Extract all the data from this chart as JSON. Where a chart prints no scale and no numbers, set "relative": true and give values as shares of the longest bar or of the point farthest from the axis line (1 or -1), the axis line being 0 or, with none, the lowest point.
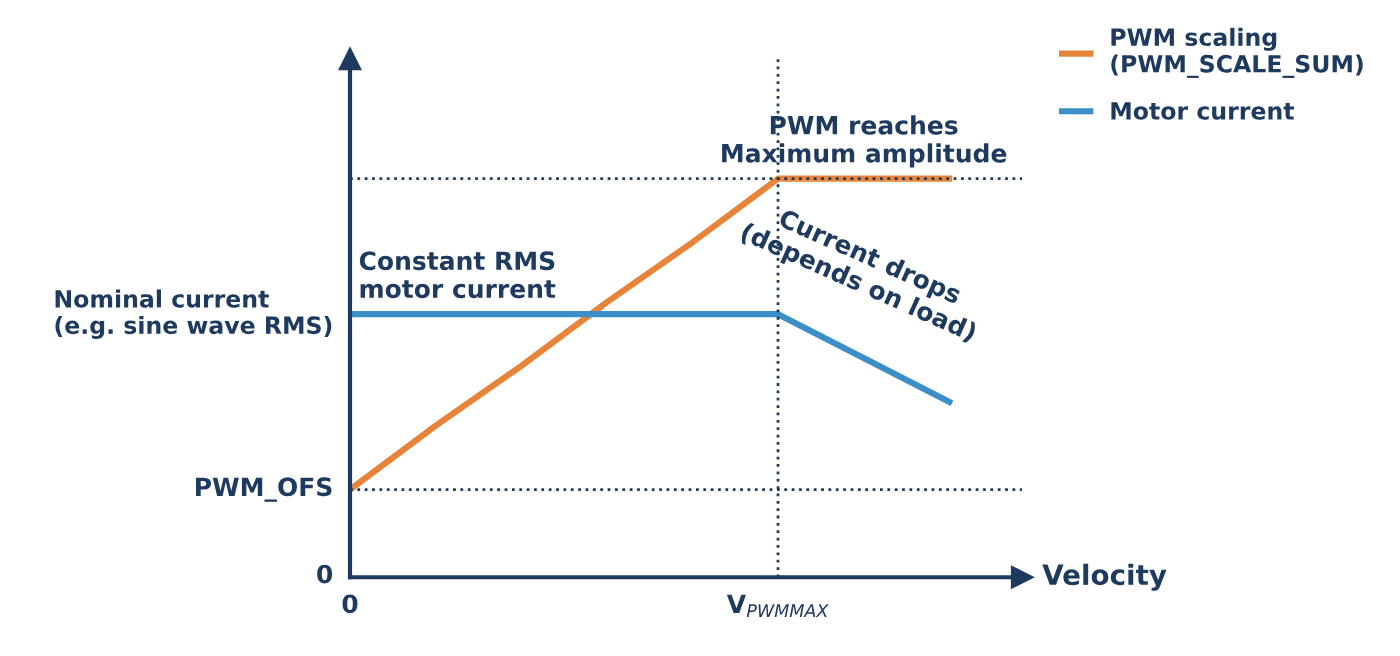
{
  "chart_data": {
    "type": "line",
    "xlabel": "Velocity",
    "relative": true,
    "categories": [
      "0",
      null,
      null,
      null,
      null,
      "V$_{PWMMAX}$",
      null,
      null
    ],
    "series": [
      {
        "name": "PWM scaling\n(PWM_SCALE_SUM)",
        "color": "#e8843a",
        "values": [
          0.22,
          0.38,
          0.53,
          0.69,
          0.84,
          1,
          1,
          1
        ]
      },
      {
        "name": "Motor current",
        "color": "#3b8fc6",
        "values": [
          0.66,
          0.66,
          0.66,
          0.66,
          0.66,
          0.66,
          0.55,
          0.44
        ]
      }
    ],
    "ref_lines": [
      {
        "axis": "y",
        "value": 1,
        "line_style": "dotted",
        "color": "#1f3a5f"
      },
      {
        "axis": "y",
        "value": 0.22,
        "label": "PWM_OFS",
        "line_style": "dotted",
        "color": "#1f3a5f"
      },
      {
        "axis": "x",
        "value": "V$_{PWMMAX}$",
        "line_style": "dotted",
        "color": "#1f3a5f"
      }
    ],
    "annotations": [
      {
        "text": "PWM reaches\nMaximum amplitude",
        "y": 1
      },
      {
        "text": "Constant RMS\nmotor current",
        "y": 0.66
      },
      {
        "text": "Current drops\n(depends on load)",
        "y": 0.55
      },
      {
        "text": "Nominal current\n(e.g. sine wave RMS)",
        "x": "0",
        "y": 0.66
      },
      "0"
    ],
    "legend": "top right",
    "marker": "none",
    "line_style": "solid"
  }
}
